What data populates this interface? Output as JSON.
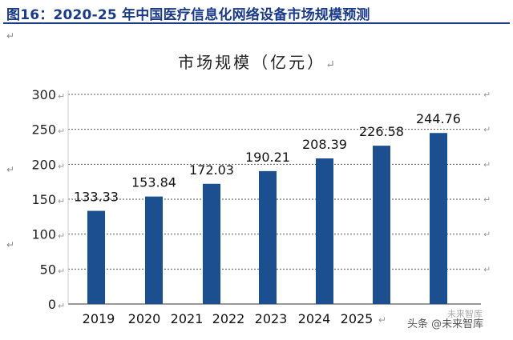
{
  "header": {
    "title": "图16：2020-25 年中国医疗信息化网络设备市场规模预测"
  },
  "para_mark": "↵",
  "footer": {
    "source": "头条 @未来智库",
    "watermark": "未来智库"
  },
  "chart_data": {
    "type": "bar",
    "title": "市场规模（亿元）",
    "xlabel": "",
    "ylabel": "",
    "categories": [
      "2019",
      "2020",
      "2021",
      "2022",
      "2023",
      "2024",
      "2025"
    ],
    "values": [
      133.33,
      153.84,
      172.03,
      190.21,
      208.39,
      226.58,
      244.76
    ],
    "data_labels": [
      "133.33",
      "153.84",
      "172.03",
      "190.21",
      "208.39",
      "226.58",
      "244.76"
    ],
    "yticks": [
      "0",
      "50",
      "100",
      "150",
      "200",
      "250",
      "300"
    ],
    "ylim": [
      0,
      300
    ],
    "grid": "dashed-horizontal",
    "legend": "none",
    "bar_color": "#1b4f8f"
  }
}
